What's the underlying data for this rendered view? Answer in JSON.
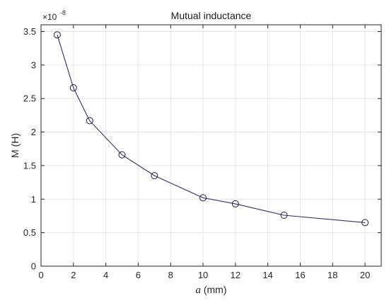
{
  "chart_data": {
    "type": "line",
    "title": "Mutual inductance",
    "xlabel_var": "a",
    "xlabel_unit": " (mm)",
    "ylabel": "M (H)",
    "y_exponent_base": "×10",
    "y_exponent_power": "-8",
    "xlim": [
      0,
      21
    ],
    "ylim": [
      0,
      3.6
    ],
    "xticks": [
      0,
      2,
      4,
      6,
      8,
      10,
      12,
      14,
      16,
      18,
      20
    ],
    "yticks": [
      0,
      0.5,
      1,
      1.5,
      2,
      2.5,
      3,
      3.5
    ],
    "xtick_labels": [
      "0",
      "2",
      "4",
      "6",
      "8",
      "10",
      "12",
      "14",
      "16",
      "18",
      "20"
    ],
    "ytick_labels": [
      "0",
      "0.5",
      "1",
      "1.5",
      "2",
      "2.5",
      "3",
      "3.5"
    ],
    "grid": true,
    "marker": "circle",
    "series": [
      {
        "x": [
          1,
          2,
          3,
          5,
          7,
          10,
          12,
          15,
          20
        ],
        "y": [
          3.45,
          2.66,
          2.17,
          1.66,
          1.35,
          1.02,
          0.93,
          0.76,
          0.65
        ]
      }
    ],
    "colors": {
      "line": "#2c2c6e",
      "marker": "#1f1f3a",
      "grid": "#e6e6e6"
    }
  }
}
